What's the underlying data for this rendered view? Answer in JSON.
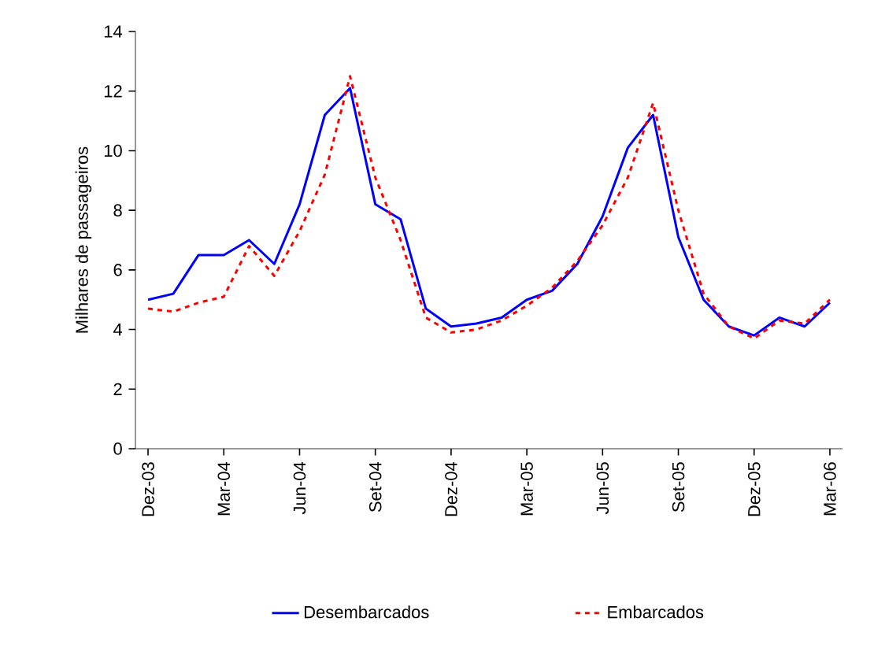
{
  "chart_data": {
    "type": "line",
    "ylabel": "Milhares de passageiros",
    "categories": [
      "Dez-03",
      null,
      null,
      "Mar-04",
      null,
      null,
      "Jun-04",
      null,
      null,
      "Set-04",
      null,
      null,
      "Dez-04",
      null,
      null,
      "Mar-05",
      null,
      null,
      "Jun-05",
      null,
      null,
      "Set-05",
      null,
      null,
      "Dez-05",
      null,
      null,
      "Mar-06"
    ],
    "series": [
      {
        "name": "Desembarcados",
        "color": "#0000ff",
        "line_style": "solid",
        "values": [
          5.0,
          5.2,
          6.5,
          6.5,
          7.0,
          6.2,
          8.2,
          11.2,
          12.1,
          8.2,
          7.7,
          4.7,
          4.1,
          4.2,
          4.4,
          5.0,
          5.3,
          6.2,
          7.8,
          10.1,
          11.2,
          7.1,
          5.0,
          4.1,
          3.8,
          4.4,
          4.1,
          4.9
        ]
      },
      {
        "name": "Embarcados",
        "color": "#ff0000",
        "line_style": "dashed",
        "values": [
          4.7,
          4.6,
          4.9,
          5.1,
          6.8,
          5.8,
          7.3,
          9.2,
          12.5,
          9.1,
          7.0,
          4.4,
          3.9,
          4.0,
          4.3,
          4.8,
          5.4,
          6.3,
          7.5,
          9.1,
          11.6,
          8.0,
          5.2,
          4.1,
          3.7,
          4.3,
          4.2,
          5.0
        ]
      }
    ],
    "ylim": [
      0,
      14
    ],
    "yticks": [
      0,
      2,
      4,
      6,
      8,
      10,
      12,
      14
    ],
    "marker": "none",
    "legend": "bottom",
    "grid": false
  }
}
